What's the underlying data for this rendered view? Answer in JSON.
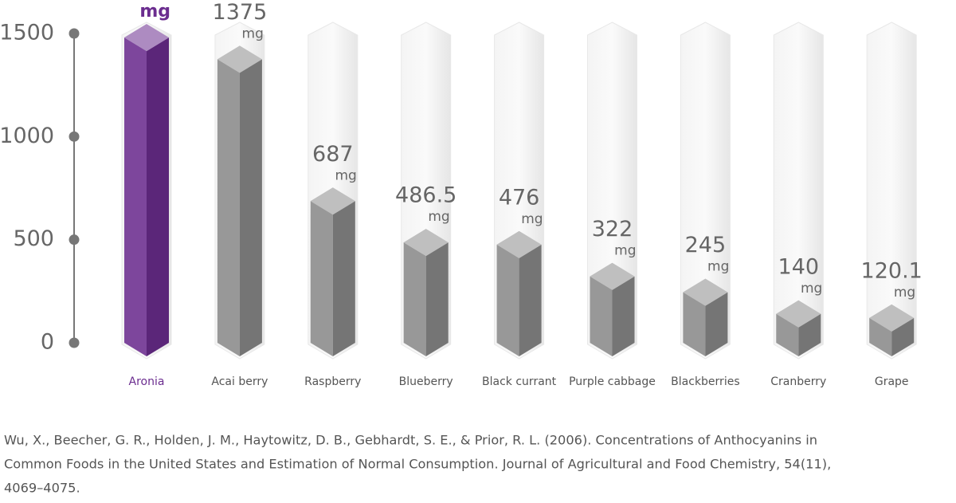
{
  "chart_data": {
    "type": "bar",
    "categories": [
      "Aronia",
      "Acai berry",
      "Raspberry",
      "Blueberry",
      "Black currant",
      "Purple cabbage",
      "Blackberries",
      "Cranberry",
      "Grape"
    ],
    "values": [
      1480,
      1375,
      687,
      486.5,
      476,
      322,
      245,
      140,
      120.1
    ],
    "unit": "mg",
    "colors": [
      "#6b2d8f",
      "#8a8a8a",
      "#8a8a8a",
      "#8a8a8a",
      "#8a8a8a",
      "#8a8a8a",
      "#8a8a8a",
      "#8a8a8a",
      "#8a8a8a"
    ],
    "ylim": [
      0,
      1500
    ],
    "yticks": [
      0,
      500,
      1000,
      1500
    ]
  },
  "source": {
    "lines": [
      "Wu, X., Beecher, G. R., Holden, J. M., Haytowitz, D. B., Gebhardt, S. E., & Prior, R. L. (2006). Concentrations of Anthocyanins in",
      "Common Foods in the United States and Estimation of Normal Consumption. Journal of Agricultural and Food Chemistry, 54(11),",
      "4069–4075."
    ]
  }
}
